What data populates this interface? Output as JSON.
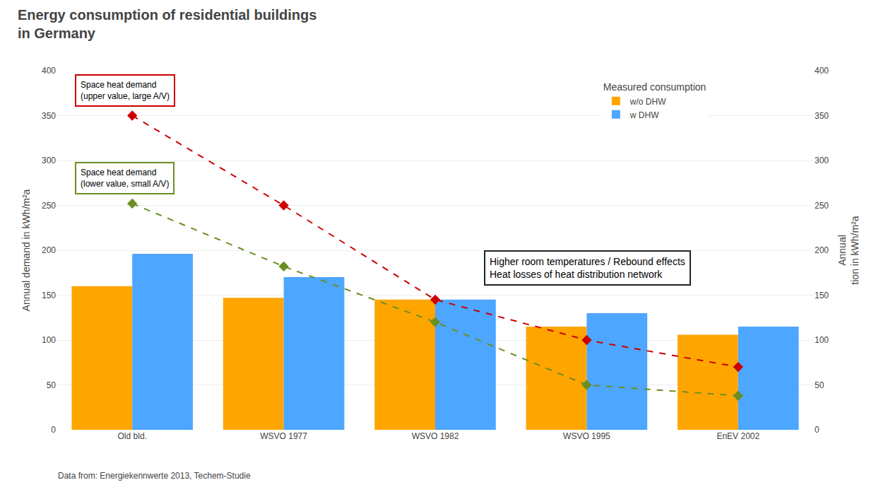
{
  "chart_data": {
    "type": "bar",
    "title": "Energy consumption of residential buildings\nin Germany",
    "categories": [
      "Old bld.",
      "WSVO 1977",
      "WSVO 1982",
      "WSVO 1995",
      "EnEV 2002"
    ],
    "series": [
      {
        "name": "w/o DHW",
        "type": "bar",
        "color": "#FFA500",
        "values": [
          160,
          147,
          145,
          115,
          106
        ]
      },
      {
        "name": "w DHW",
        "type": "bar",
        "color": "#4DA6FF",
        "values": [
          196,
          170,
          145,
          130,
          115
        ]
      },
      {
        "type": "line",
        "color": "#CC0000",
        "marker": "diamond",
        "line_style": "dashed",
        "values": [
          350,
          250,
          145,
          100,
          70
        ]
      },
      {
        "type": "line",
        "color": "#6B8E23",
        "marker": "diamond",
        "line_style": "dashed",
        "values": [
          252,
          182,
          120,
          50,
          38
        ]
      }
    ],
    "ylabel": "Annual demand in kWh/m²a",
    "y2label": "Annual\ntion in kWh/m²a",
    "ylim": [
      0,
      400
    ],
    "yticks": [
      0,
      50,
      100,
      150,
      200,
      250,
      300,
      350,
      400
    ],
    "y2lim": [
      0,
      400
    ],
    "y2ticks": [
      0,
      50,
      100,
      150,
      200,
      250,
      300,
      350,
      400
    ],
    "grid": true,
    "legend": "upper right",
    "legend_title": "Measured consumption",
    "annotations": [
      "Space heat demand\n(upper value, large A/V)",
      "Space heat demand\n(lower value, small A/V)",
      "Higher room temperatures / Rebound effects\nHeat losses of heat distribution network"
    ],
    "footer": "Data from: Energiekennwerte 2013, Techem-Studie"
  }
}
